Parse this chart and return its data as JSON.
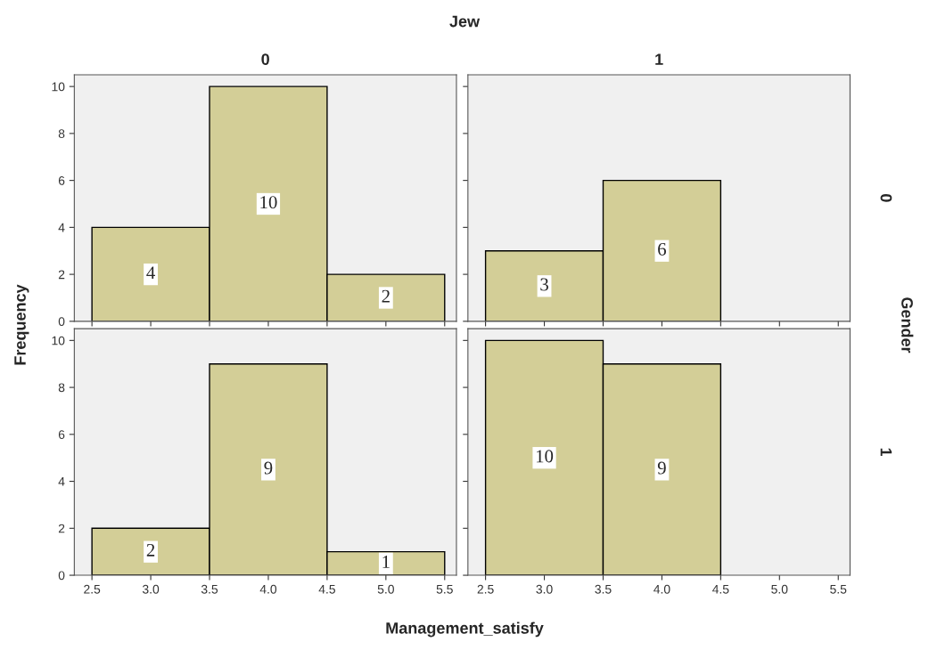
{
  "chart_data": [
    {
      "type": "histogram",
      "title": "0",
      "ylabel": "Frequency",
      "annotations": [
        "Jew",
        "Gender"
      ],
      "bins": [
        2.5,
        3.5,
        4.5,
        5.5
      ],
      "values": [
        4,
        10,
        2
      ],
      "color": "#d3ce97",
      "data_labels": true,
      "xlim": [
        2.35,
        5.6
      ],
      "ylim": [
        0,
        10.5
      ],
      "xticks": [
        {
          "value": 2.5,
          "label": null
        },
        {
          "value": 3,
          "label": null
        },
        {
          "value": 3.5,
          "label": null
        },
        {
          "value": 4,
          "label": null
        },
        {
          "value": 4.5,
          "label": null
        },
        {
          "value": 5,
          "label": null
        },
        {
          "value": 5.5,
          "label": null
        }
      ],
      "yticks": [
        0,
        2,
        4,
        6,
        8,
        10
      ],
      "tick_labels": "y",
      "grid": false
    },
    {
      "type": "histogram",
      "title": "1",
      "y2label": "0",
      "bins": [
        2.5,
        3.5,
        4.5
      ],
      "values": [
        3,
        6
      ],
      "color": "#d3ce97",
      "data_labels": true,
      "xlim": [
        2.35,
        5.6
      ],
      "ylim": [
        0,
        10.5
      ],
      "xticks": [
        {
          "value": 2.5,
          "label": null
        },
        {
          "value": 3,
          "label": null
        },
        {
          "value": 3.5,
          "label": null
        },
        {
          "value": 4,
          "label": null
        },
        {
          "value": 4.5,
          "label": null
        },
        {
          "value": 5,
          "label": null
        },
        {
          "value": 5.5,
          "label": null
        }
      ],
      "yticks": [
        {
          "value": 0,
          "label": null
        },
        {
          "value": 2,
          "label": null
        },
        {
          "value": 4,
          "label": null
        },
        {
          "value": 6,
          "label": null
        },
        {
          "value": 8,
          "label": null
        },
        {
          "value": 10,
          "label": null
        }
      ],
      "tick_labels": false,
      "grid": false
    },
    {
      "type": "histogram",
      "xlabel": "Management_satisfy",
      "bins": [
        2.5,
        3.5,
        4.5,
        5.5
      ],
      "values": [
        2,
        9,
        1
      ],
      "color": "#d3ce97",
      "data_labels": true,
      "xlim": [
        2.35,
        5.6
      ],
      "ylim": [
        0,
        10.5
      ],
      "xticks": [
        2.5,
        {
          "value": 3,
          "label": "3.0"
        },
        3.5,
        {
          "value": 4,
          "label": "4.0"
        },
        4.5,
        {
          "value": 5,
          "label": "5.0"
        },
        5.5
      ],
      "yticks": [
        0,
        2,
        4,
        6,
        8,
        10
      ],
      "grid": false
    },
    {
      "type": "histogram",
      "y2label": "1",
      "bins": [
        2.5,
        3.5,
        4.5
      ],
      "values": [
        10,
        9
      ],
      "color": "#d3ce97",
      "data_labels": true,
      "xlim": [
        2.35,
        5.6
      ],
      "ylim": [
        0,
        10.5
      ],
      "xticks": [
        2.5,
        {
          "value": 3,
          "label": "3.0"
        },
        3.5,
        {
          "value": 4,
          "label": "4.0"
        },
        4.5,
        {
          "value": 5,
          "label": "5.0"
        },
        5.5
      ],
      "yticks": [
        {
          "value": 0,
          "label": null
        },
        {
          "value": 2,
          "label": null
        },
        {
          "value": 4,
          "label": null
        },
        {
          "value": 6,
          "label": null
        },
        {
          "value": 8,
          "label": null
        },
        {
          "value": 10,
          "label": null
        }
      ],
      "tick_labels": "x",
      "grid": false
    }
  ]
}
